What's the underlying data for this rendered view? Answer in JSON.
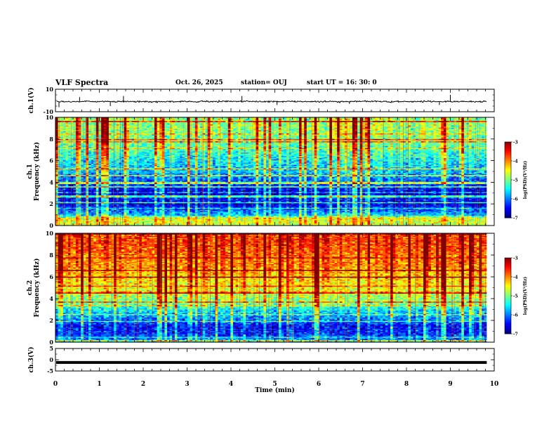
{
  "header": {
    "title": "VLF Spectra",
    "date": "Oct. 26, 2025",
    "station": "station= OUJ",
    "start": "start  UT  =   16: 30: 0"
  },
  "chart_data": [
    {
      "type": "line",
      "name": "ch1-voltage",
      "ylabel": "ch.1(V)",
      "ylim": [
        -10,
        10
      ],
      "yticks": [
        "10",
        "-10"
      ],
      "x_range_min": [
        0,
        9.83
      ],
      "baseline": 0,
      "spikes": [
        {
          "x": 0.08,
          "dy": -6
        },
        {
          "x": 0.55,
          "dy": 3
        },
        {
          "x": 1.25,
          "dy": -5
        },
        {
          "x": 1.55,
          "dy": 4
        },
        {
          "x": 4.25,
          "dy": 4
        },
        {
          "x": 5.05,
          "dy": -4
        },
        {
          "x": 6.7,
          "dy": -3
        },
        {
          "x": 8.75,
          "dy": -4
        },
        {
          "x": 9.0,
          "dy": 5
        }
      ]
    },
    {
      "type": "heatmap",
      "name": "ch1-spectrogram",
      "ylabel_line1": "ch.1",
      "ylabel_line2": "Frequency (kHz)",
      "ylim": [
        0,
        10
      ],
      "yticks": [
        "0",
        "2",
        "4",
        "6",
        "8",
        "10"
      ],
      "x_range_min": [
        0,
        9.83
      ],
      "profile_log_psd": [
        [
          0,
          -4.8
        ],
        [
          0.7,
          -4.6
        ],
        [
          1.0,
          -5.8
        ],
        [
          1.6,
          -6.3
        ],
        [
          2.0,
          -6.7
        ],
        [
          2.5,
          -6.5
        ],
        [
          3.0,
          -6.8
        ],
        [
          3.6,
          -6.4
        ],
        [
          4.2,
          -6.2
        ],
        [
          5.0,
          -5.8
        ],
        [
          6.0,
          -5.6
        ],
        [
          7.0,
          -5.3
        ],
        [
          8.0,
          -5.1
        ],
        [
          9.0,
          -5.0
        ],
        [
          10,
          -5.0
        ]
      ]
    },
    {
      "type": "heatmap",
      "name": "ch2-spectrogram",
      "ylabel_line1": "ch.2",
      "ylabel_line2": "Frequency (kHz)",
      "ylim": [
        0,
        10
      ],
      "yticks": [
        "0",
        "2",
        "4",
        "6",
        "8",
        "10"
      ],
      "x_range_min": [
        0,
        9.83
      ],
      "profile_log_psd": [
        [
          0,
          -5.8
        ],
        [
          0.8,
          -6.4
        ],
        [
          1.5,
          -6.5
        ],
        [
          2.2,
          -6.0
        ],
        [
          3.0,
          -5.6
        ],
        [
          3.5,
          -5.2
        ],
        [
          4.2,
          -4.9
        ],
        [
          5.0,
          -4.6
        ],
        [
          6.0,
          -4.4
        ],
        [
          7.0,
          -4.1
        ],
        [
          8.0,
          -4.0
        ],
        [
          9.0,
          -3.8
        ],
        [
          10,
          -3.8
        ]
      ]
    },
    {
      "type": "line",
      "name": "ch3-voltage",
      "ylabel": "ch.3(V)",
      "ylim": [
        -5,
        5
      ],
      "yticks": [
        "5",
        "0",
        "-5"
      ],
      "x_range_min": [
        0,
        9.83
      ],
      "baseline": -1.2
    }
  ],
  "xaxis": {
    "label": "Time  (min)",
    "range": [
      0,
      10
    ],
    "ticks": [
      "0",
      "1",
      "2",
      "3",
      "4",
      "5",
      "6",
      "7",
      "8",
      "9",
      "10"
    ]
  },
  "colorbar": {
    "label": "log(PSD)(V²/Hz)",
    "range": [
      -7,
      -3
    ],
    "ticks": [
      "-3",
      "-4",
      "-5",
      "-6",
      "-7"
    ]
  },
  "colors": {
    "colormap": [
      "#00007f",
      "#0000ff",
      "#0080ff",
      "#00ffff",
      "#80ff80",
      "#ffff00",
      "#ff8000",
      "#ff0000",
      "#7f0000"
    ]
  }
}
